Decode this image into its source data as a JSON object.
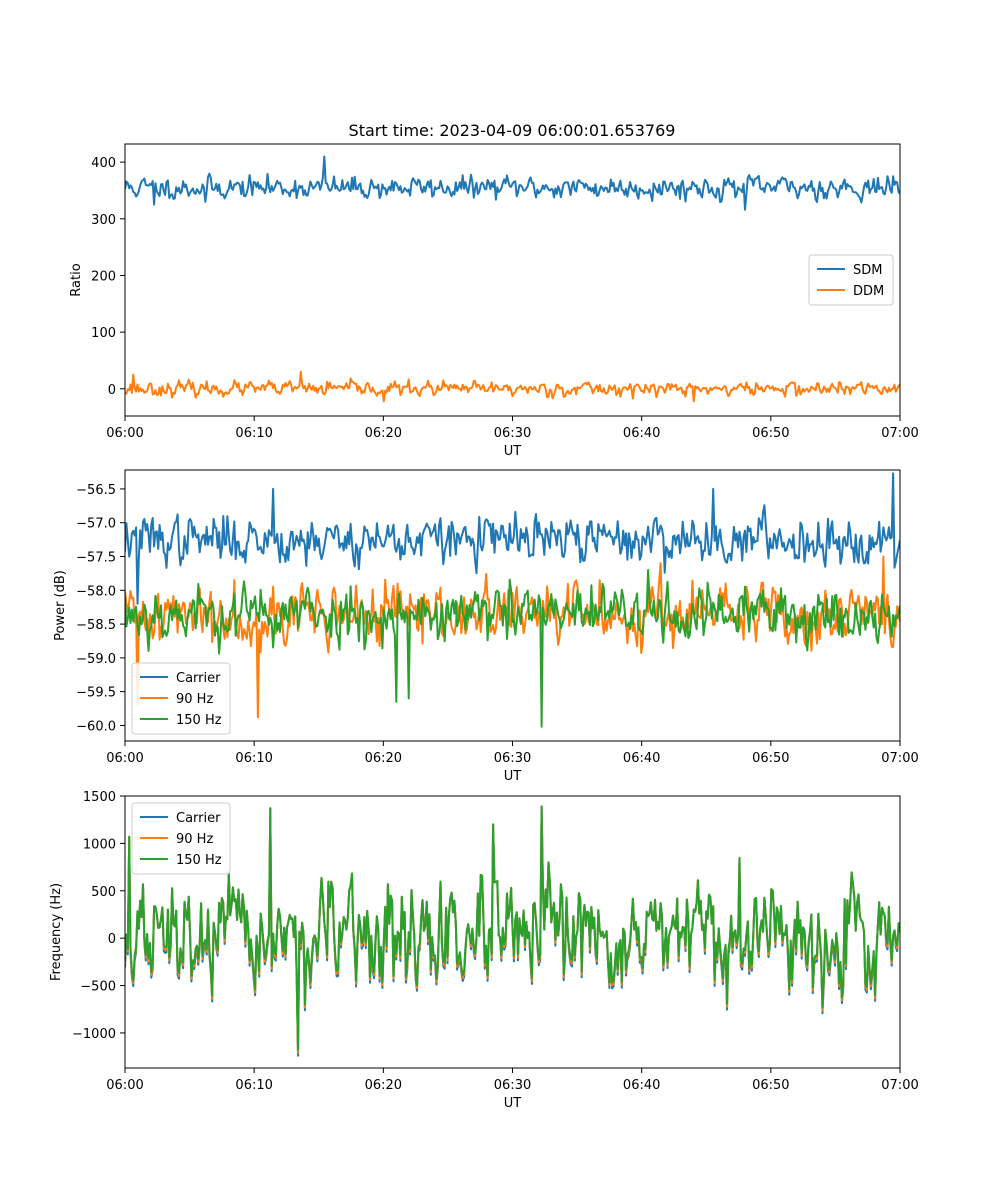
{
  "figure": {
    "title": "Start time: 2023-04-09 06:00:01.653769"
  },
  "colors": {
    "blue": "#1f77b4",
    "orange": "#ff7f0e",
    "green": "#2ca02c"
  },
  "chart_data": [
    {
      "type": "line",
      "id": "ratio",
      "xlabel": "UT",
      "ylabel": "Ratio",
      "xlim": [
        0,
        60
      ],
      "ylim": [
        -48,
        432
      ],
      "xticks": [
        0,
        10,
        20,
        30,
        40,
        50,
        60
      ],
      "xtick_labels": [
        "06:00",
        "06:10",
        "06:20",
        "06:30",
        "06:40",
        "06:50",
        "07:00"
      ],
      "yticks": [
        0,
        100,
        200,
        300,
        400
      ],
      "ytick_labels": [
        "0",
        "100",
        "200",
        "300",
        "400"
      ],
      "legend_position": "center-right",
      "series": [
        {
          "name": "SDM",
          "color": "#1f77b4",
          "base": 355,
          "noise": 14,
          "seed": 11,
          "spikes": [
            [
              15.4,
              410
            ],
            [
              6.2,
              330
            ],
            [
              2.3,
              325
            ],
            [
              48.0,
              316
            ]
          ]
        },
        {
          "name": "DDM",
          "color": "#ff7f0e",
          "base": 0,
          "noise": 9,
          "seed": 23,
          "spikes": [
            [
              13.6,
              30
            ],
            [
              0.6,
              25
            ],
            [
              20.0,
              -22
            ],
            [
              44.0,
              -22
            ]
          ]
        }
      ]
    },
    {
      "type": "line",
      "id": "power",
      "xlabel": "UT",
      "ylabel": "Power (dB)",
      "xlim": [
        0,
        60
      ],
      "ylim": [
        -60.23,
        -56.22
      ],
      "xticks": [
        0,
        10,
        20,
        30,
        40,
        50,
        60
      ],
      "xtick_labels": [
        "06:00",
        "06:10",
        "06:20",
        "06:30",
        "06:40",
        "06:50",
        "07:00"
      ],
      "yticks": [
        -60.0,
        -59.5,
        -59.0,
        -58.5,
        -58.0,
        -57.5,
        -57.0,
        -56.5
      ],
      "ytick_labels": [
        "−60.0",
        "−59.5",
        "−59.0",
        "−58.5",
        "−58.0",
        "−57.5",
        "−57.0",
        "−56.5"
      ],
      "legend_position": "lower-left",
      "series": [
        {
          "name": "Carrier",
          "color": "#1f77b4",
          "base": -57.25,
          "noise": 0.25,
          "seed": 37,
          "spikes": [
            [
              59.5,
              -56.27
            ],
            [
              11.5,
              -56.5
            ],
            [
              45.5,
              -56.5
            ],
            [
              1.0,
              -58.2
            ]
          ]
        },
        {
          "name": "90 Hz",
          "color": "#ff7f0e",
          "base": -58.35,
          "noise": 0.32,
          "seed": 41,
          "spikes": [
            [
              10.3,
              -59.88
            ],
            [
              1.0,
              -59.7
            ],
            [
              41.5,
              -57.6
            ],
            [
              58.7,
              -57.5
            ]
          ]
        },
        {
          "name": "150 Hz",
          "color": "#2ca02c",
          "base": -58.35,
          "noise": 0.3,
          "seed": 53,
          "spikes": [
            [
              32.3,
              -60.02
            ],
            [
              21.0,
              -59.65
            ],
            [
              22.0,
              -59.6
            ],
            [
              40.5,
              -57.7
            ]
          ]
        }
      ]
    },
    {
      "type": "line",
      "id": "frequency",
      "xlabel": "UT",
      "ylabel": "Frequency (Hz)",
      "xlim": [
        0,
        60
      ],
      "ylim": [
        -1370,
        1500
      ],
      "xticks": [
        0,
        10,
        20,
        30,
        40,
        50,
        60
      ],
      "xtick_labels": [
        "06:00",
        "06:10",
        "06:20",
        "06:30",
        "06:40",
        "06:50",
        "07:00"
      ],
      "yticks": [
        -1000,
        -500,
        0,
        500,
        1000,
        1500
      ],
      "ytick_labels": [
        "−1000",
        "−500",
        "0",
        "500",
        "1000",
        "1500"
      ],
      "legend_position": "upper-left",
      "series": [
        {
          "name": "Carrier",
          "color": "#1f77b4",
          "base": 0,
          "noise": 380,
          "seed": 67,
          "offset": -60,
          "spikes": [
            [
              13.4,
              -1240
            ],
            [
              11.2,
              1370
            ],
            [
              32.3,
              1390
            ],
            [
              28.5,
              1200
            ],
            [
              0.3,
              1070
            ]
          ]
        },
        {
          "name": "90 Hz",
          "color": "#ff7f0e",
          "base": 0,
          "noise": 380,
          "seed": 67,
          "offset": -30,
          "spikes": [
            [
              13.4,
              -1210
            ],
            [
              11.2,
              1370
            ],
            [
              32.3,
              1390
            ],
            [
              28.5,
              1200
            ],
            [
              0.3,
              1070
            ]
          ]
        },
        {
          "name": "150 Hz",
          "color": "#2ca02c",
          "base": 0,
          "noise": 380,
          "seed": 67,
          "offset": 0,
          "spikes": [
            [
              13.4,
              -1180
            ],
            [
              11.2,
              1370
            ],
            [
              32.3,
              1390
            ],
            [
              28.5,
              1200
            ],
            [
              0.3,
              1070
            ]
          ]
        }
      ]
    }
  ]
}
